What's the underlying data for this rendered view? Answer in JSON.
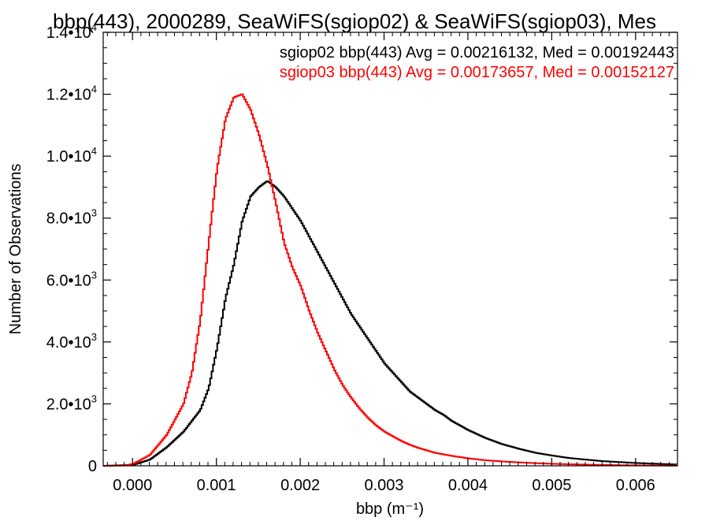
{
  "chart_data": {
    "type": "line",
    "title": "bbp(443), 2000289, SeaWiFS(sgiop02) & SeaWiFS(sgiop03), Mes",
    "xlabel": "bbp (m⁻¹)",
    "ylabel": "Number of Observations",
    "xlim": [
      -0.00035,
      0.0065
    ],
    "ylim": [
      0,
      14000
    ],
    "x_ticks": [
      0.0,
      0.001,
      0.002,
      0.003,
      0.004,
      0.005,
      0.006
    ],
    "x_tick_labels": [
      "0.000",
      "0.001",
      "0.002",
      "0.003",
      "0.004",
      "0.005",
      "0.006"
    ],
    "y_ticks": [
      0,
      2000,
      4000,
      6000,
      8000,
      10000,
      12000,
      14000
    ],
    "y_tick_labels": [
      {
        "mant": "0",
        "exp": ""
      },
      {
        "mant": "2.0•10",
        "exp": "3"
      },
      {
        "mant": "4.0•10",
        "exp": "3"
      },
      {
        "mant": "6.0•10",
        "exp": "3"
      },
      {
        "mant": "8.0•10",
        "exp": "3"
      },
      {
        "mant": "1.0•10",
        "exp": "4"
      },
      {
        "mant": "1.2•10",
        "exp": "4"
      },
      {
        "mant": "1.4•10",
        "exp": "4"
      }
    ],
    "legend": [
      {
        "text": "sgiop02 bbp(443) Avg = 0.00216132, Med = 0.00192443",
        "color": "#000000"
      },
      {
        "text": "sgiop03 bbp(443) Avg = 0.00173657, Med = 0.00152127",
        "color": "#ff0000"
      }
    ],
    "legend_position": "top-right",
    "grid": false,
    "series": [
      {
        "name": "sgiop02",
        "color": "#000000",
        "x": [
          -0.00035,
          0.0,
          0.0002,
          0.0004,
          0.0006,
          0.0008,
          0.0009,
          0.001,
          0.0011,
          0.0012,
          0.0013,
          0.0014,
          0.0015,
          0.0016,
          0.0017,
          0.0018,
          0.0019,
          0.002,
          0.0021,
          0.0022,
          0.0023,
          0.0024,
          0.0025,
          0.0026,
          0.0027,
          0.0028,
          0.0029,
          0.003,
          0.0031,
          0.0032,
          0.0033,
          0.0034,
          0.0035,
          0.0036,
          0.0037,
          0.0038,
          0.004,
          0.0042,
          0.0044,
          0.0046,
          0.0048,
          0.005,
          0.0052,
          0.0054,
          0.0056,
          0.0058,
          0.006,
          0.0062,
          0.0065
        ],
        "values": [
          0,
          30,
          200,
          600,
          1100,
          1800,
          2500,
          3800,
          5400,
          6500,
          7900,
          8700,
          9000,
          9200,
          9000,
          8700,
          8300,
          7900,
          7400,
          6900,
          6400,
          5900,
          5400,
          4900,
          4500,
          4100,
          3700,
          3300,
          3000,
          2700,
          2400,
          2200,
          2000,
          1800,
          1650,
          1450,
          1150,
          900,
          700,
          550,
          420,
          330,
          250,
          200,
          150,
          120,
          90,
          70,
          40
        ]
      },
      {
        "name": "sgiop03",
        "color": "#ff0000",
        "x": [
          -0.00035,
          -0.0001,
          0.0,
          0.0002,
          0.0004,
          0.0006,
          0.0007,
          0.0008,
          0.0009,
          0.001,
          0.0011,
          0.0012,
          0.0013,
          0.0014,
          0.0015,
          0.0016,
          0.0017,
          0.0018,
          0.0019,
          0.002,
          0.0021,
          0.0022,
          0.0023,
          0.0024,
          0.0025,
          0.0026,
          0.0027,
          0.0028,
          0.0029,
          0.003,
          0.0031,
          0.0032,
          0.0033,
          0.0034,
          0.0035,
          0.0036,
          0.0038,
          0.004,
          0.0042,
          0.0044,
          0.0046,
          0.0048,
          0.005,
          0.0052,
          0.0054,
          0.0056,
          0.0058,
          0.006,
          0.0065
        ],
        "values": [
          0,
          10,
          60,
          350,
          1000,
          2000,
          3000,
          4700,
          7200,
          9600,
          11200,
          11900,
          12000,
          11500,
          10700,
          9700,
          8500,
          7200,
          6400,
          5800,
          5000,
          4300,
          3700,
          3100,
          2600,
          2200,
          1850,
          1550,
          1300,
          1100,
          950,
          800,
          680,
          580,
          500,
          420,
          320,
          240,
          180,
          140,
          110,
          85,
          65,
          50,
          38,
          28,
          20,
          15,
          5
        ]
      }
    ]
  }
}
